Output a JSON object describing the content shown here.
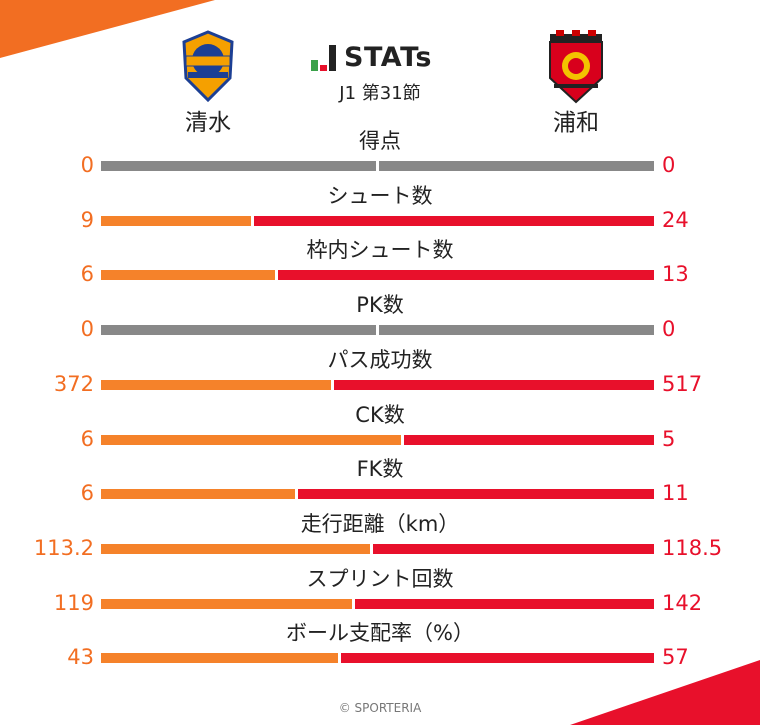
{
  "colors": {
    "home": "#f26e22",
    "away": "#e8102b",
    "zero_bar": "#888888"
  },
  "header": {
    "logo_text": "STATs",
    "subtitle": "J1 第31節",
    "home_team": "清水",
    "away_team": "浦和"
  },
  "stats": [
    {
      "label": "得点",
      "home": "0",
      "away": "0",
      "home_value": 0,
      "away_value": 0
    },
    {
      "label": "シュート数",
      "home": "9",
      "away": "24",
      "home_value": 9,
      "away_value": 24
    },
    {
      "label": "枠内シュート数",
      "home": "6",
      "away": "13",
      "home_value": 6,
      "away_value": 13
    },
    {
      "label": "PK数",
      "home": "0",
      "away": "0",
      "home_value": 0,
      "away_value": 0
    },
    {
      "label": "パス成功数",
      "home": "372",
      "away": "517",
      "home_value": 372,
      "away_value": 517
    },
    {
      "label": "CK数",
      "home": "6",
      "away": "5",
      "home_value": 6,
      "away_value": 5
    },
    {
      "label": "FK数",
      "home": "6",
      "away": "11",
      "home_value": 6,
      "away_value": 11
    },
    {
      "label": "走行距離（km）",
      "home": "113.2",
      "away": "118.5",
      "home_value": 113.2,
      "away_value": 118.5
    },
    {
      "label": "スプリント回数",
      "home": "119",
      "away": "142",
      "home_value": 119,
      "away_value": 142
    },
    {
      "label": "ボール支配率（%）",
      "home": "43",
      "away": "57",
      "home_value": 43,
      "away_value": 57
    }
  ],
  "footer": "© SPORTERIA"
}
